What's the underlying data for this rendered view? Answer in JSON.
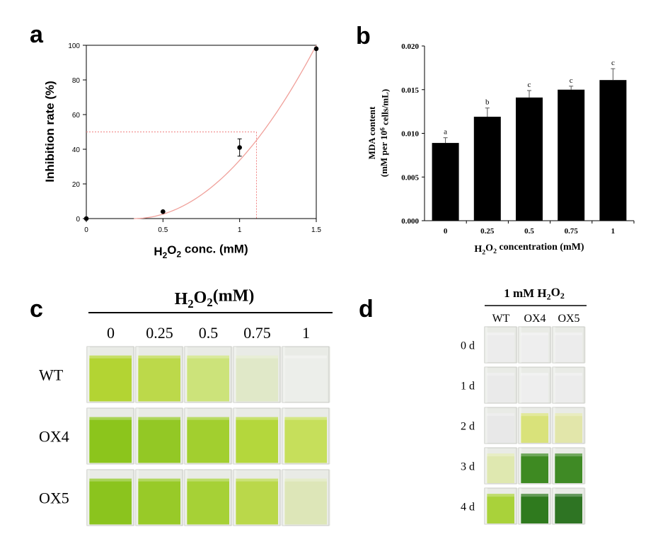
{
  "panels": {
    "a": {
      "label": "a"
    },
    "b": {
      "label": "b"
    },
    "c": {
      "label": "c"
    },
    "d": {
      "label": "d"
    }
  },
  "chart_data": [
    {
      "panel": "a",
      "type": "scatter",
      "title": "",
      "xlabel_parts": [
        "H",
        "2",
        "O",
        "2",
        " conc. (mM)"
      ],
      "ylabel": "Inhibition rate (%)",
      "xlim": [
        0,
        1.5
      ],
      "ylim": [
        0,
        100
      ],
      "xticks": [
        0,
        0.5,
        1,
        1.5
      ],
      "xtick_labels": [
        "0",
        "0.5",
        "1",
        "1.5"
      ],
      "yticks": [
        0,
        20,
        40,
        60,
        80,
        100
      ],
      "ytick_labels": [
        "0",
        "20",
        "40",
        "60",
        "80",
        "100"
      ],
      "grid": false,
      "points": [
        {
          "x": 0,
          "y": 0,
          "err": 0
        },
        {
          "x": 0.5,
          "y": 4,
          "err": 0
        },
        {
          "x": 1,
          "y": 41,
          "err": 5
        },
        {
          "x": 1.5,
          "y": 98,
          "err": 0
        }
      ],
      "fit_curve": {
        "x_start": 0.31,
        "x_end": 1.5,
        "y_start": 0,
        "y_end": 100,
        "curvature": 2.0
      },
      "guide_lines": {
        "y": 50,
        "x": 1.11
      },
      "colors": {
        "points": "#000000",
        "fit": "#f0a09a",
        "guide": "#f08080"
      }
    },
    {
      "panel": "b",
      "type": "bar",
      "title": "",
      "xlabel_parts": [
        "H",
        "2",
        "O",
        "2",
        " concentration (mM)"
      ],
      "ylabel_line1": "MDA content",
      "ylabel_line2_parts": [
        "(mM per 10",
        "6",
        " cells/mL)"
      ],
      "categories": [
        "0",
        "0.25",
        "0.5",
        "0.75",
        "1"
      ],
      "values": [
        0.0089,
        0.0119,
        0.0141,
        0.015,
        0.0161
      ],
      "errors": [
        0.0006,
        0.001,
        0.0008,
        0.0004,
        0.0013
      ],
      "significance": [
        "a",
        "b",
        "c",
        "c",
        "c"
      ],
      "ylim": [
        0,
        0.02
      ],
      "yticks": [
        0,
        0.005,
        0.01,
        0.015,
        0.02
      ],
      "ytick_labels": [
        "0.000",
        "0.005",
        "0.010",
        "0.015",
        "0.020"
      ],
      "grid": false,
      "colors": {
        "bars": "#000000"
      }
    }
  ],
  "photo_c": {
    "header_parts": [
      "H",
      "2",
      "O",
      "2",
      "(mM)"
    ],
    "columns": [
      "0",
      "0.25",
      "0.5",
      "0.75",
      "1"
    ],
    "rows": [
      {
        "label": "WT",
        "colors": [
          "#b3d433",
          "#bcd94a",
          "#cce37a",
          "#e0e8c8",
          "#eceeea"
        ]
      },
      {
        "label": "OX4",
        "colors": [
          "#8cc51c",
          "#93c825",
          "#a2cf2f",
          "#b4d73c",
          "#c6df5b"
        ]
      },
      {
        "label": "OX5",
        "colors": [
          "#8bc41e",
          "#98ca28",
          "#a6d136",
          "#bad84a",
          "#dde6b8"
        ]
      }
    ]
  },
  "photo_d": {
    "header_parts": [
      "1 mM  H",
      "2",
      "O",
      "2"
    ],
    "columns": [
      "WT",
      "OX4",
      "OX5"
    ],
    "rows": [
      {
        "label": "0 d",
        "colors": [
          "#ececec",
          "#eeeeee",
          "#ececec"
        ]
      },
      {
        "label": "1 d",
        "colors": [
          "#eaeaea",
          "#eeeeee",
          "#ececec"
        ]
      },
      {
        "label": "2 d",
        "colors": [
          "#e8e8e8",
          "#d9e27a",
          "#e2e6aa"
        ]
      },
      {
        "label": "3 d",
        "colors": [
          "#dfe8b0",
          "#3e8a22",
          "#3f8a25"
        ]
      },
      {
        "label": "4 d",
        "colors": [
          "#a9d23a",
          "#2f7a1e",
          "#2e7423"
        ]
      }
    ]
  }
}
